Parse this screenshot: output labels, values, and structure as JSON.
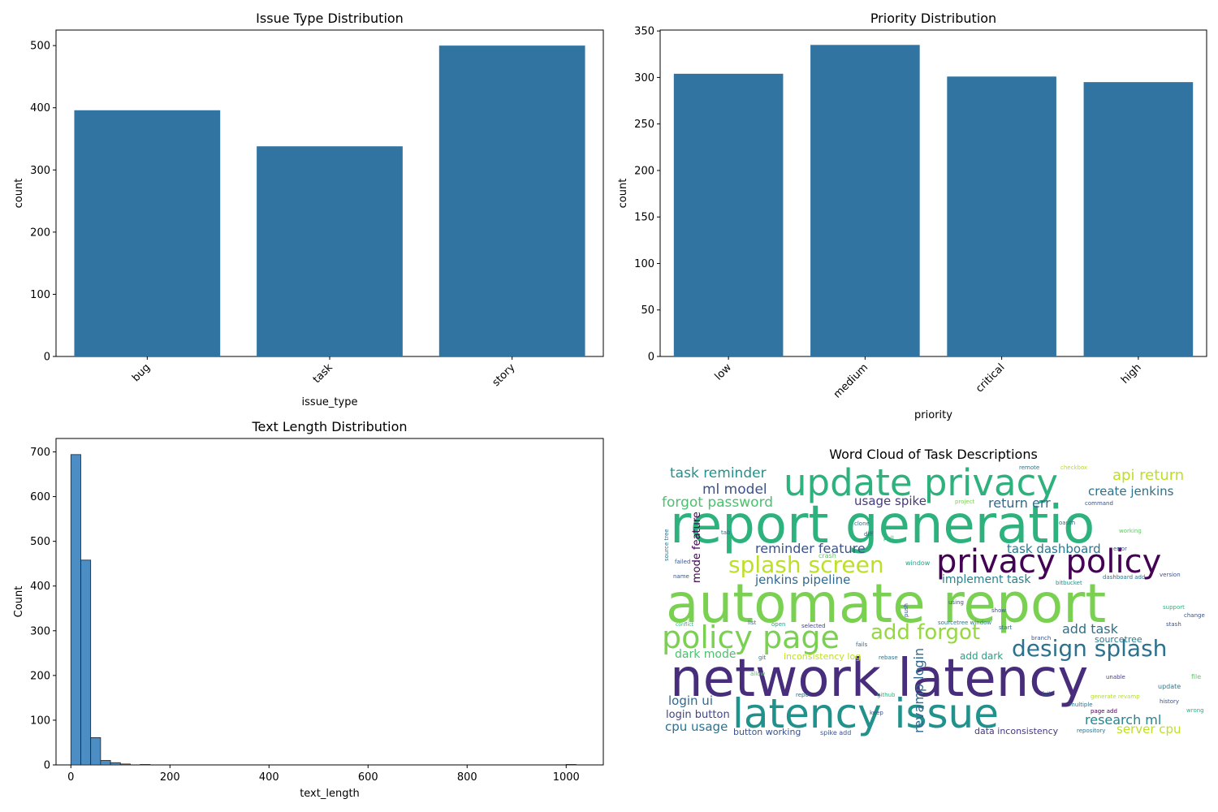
{
  "chart_data": [
    {
      "type": "bar",
      "title": "Issue Type Distribution",
      "xlabel": "issue_type",
      "ylabel": "count",
      "categories": [
        "bug",
        "task",
        "story"
      ],
      "values": [
        396,
        338,
        500
      ],
      "ylim": [
        0,
        525
      ],
      "yticks": [
        0,
        100,
        200,
        300,
        400,
        500
      ],
      "xtick_rotation": 45,
      "color": "#3274a1",
      "grid": false
    },
    {
      "type": "bar",
      "title": "Priority Distribution",
      "xlabel": "priority",
      "ylabel": "count",
      "categories": [
        "low",
        "medium",
        "critical",
        "high"
      ],
      "values": [
        304,
        335,
        301,
        295
      ],
      "ylim": [
        0,
        351
      ],
      "yticks": [
        0,
        50,
        100,
        150,
        200,
        250,
        300,
        350
      ],
      "xtick_rotation": 45,
      "color": "#3274a1",
      "grid": false
    },
    {
      "type": "bar",
      "subtype": "histogram",
      "title": "Text Length Distribution",
      "xlabel": "text_length",
      "ylabel": "Count",
      "bin_edges": [
        0,
        20,
        40,
        60,
        80,
        100,
        120,
        140,
        160,
        180,
        1000,
        1020
      ],
      "values": [
        694,
        458,
        61,
        10,
        5,
        2,
        0,
        1,
        0,
        0,
        1
      ],
      "xlim": [
        -30,
        1075
      ],
      "ylim": [
        0,
        730
      ],
      "xticks": [
        0,
        200,
        400,
        600,
        800,
        1000
      ],
      "yticks": [
        0,
        100,
        200,
        300,
        400,
        500,
        600,
        700
      ],
      "color": "#4c8ec4",
      "grid": false
    },
    {
      "type": "wordcloud",
      "title": "Word Cloud of Task Descriptions",
      "background": "#ffffff",
      "words": [
        {
          "text": "automate report",
          "weight": 100,
          "color": "#7ad151"
        },
        {
          "text": "report generatio",
          "weight": 90,
          "color": "#2db27d"
        },
        {
          "text": "network latency",
          "weight": 92,
          "color": "#472d7b"
        },
        {
          "text": "latency issue",
          "weight": 70,
          "color": "#21918c"
        },
        {
          "text": "update privacy",
          "weight": 62,
          "color": "#2db27d"
        },
        {
          "text": "privacy policy",
          "weight": 56,
          "color": "#440154"
        },
        {
          "text": "policy page",
          "weight": 52,
          "color": "#7ad151"
        },
        {
          "text": "design splash",
          "weight": 40,
          "color": "#2c728e"
        },
        {
          "text": "splash screen",
          "weight": 40,
          "color": "#bddf26"
        },
        {
          "text": "add forgot",
          "weight": 36,
          "color": "#95d840"
        },
        {
          "text": "task reminder",
          "weight": 24,
          "color": "#21918c"
        },
        {
          "text": "forgot password",
          "weight": 24,
          "color": "#4ac16d"
        },
        {
          "text": "api return",
          "weight": 24,
          "color": "#bddf26"
        },
        {
          "text": "ml model",
          "weight": 24,
          "color": "#3b528b"
        },
        {
          "text": "create jenkins",
          "weight": 20,
          "color": "#2c728e"
        },
        {
          "text": "reminder feature",
          "weight": 22,
          "color": "#3b528b"
        },
        {
          "text": "return err",
          "weight": 20,
          "color": "#31688e"
        },
        {
          "text": "task dashboard",
          "weight": 20,
          "color": "#2a788e"
        },
        {
          "text": "jenkins pipeline",
          "weight": 20,
          "color": "#31688e"
        },
        {
          "text": "implement task",
          "weight": 20,
          "color": "#25858e"
        },
        {
          "text": "usage spike",
          "weight": 18,
          "color": "#443983"
        },
        {
          "text": "add task",
          "weight": 20,
          "color": "#2c728e"
        },
        {
          "text": "dark mode",
          "weight": 18,
          "color": "#4ac16d"
        },
        {
          "text": "add dark",
          "weight": 14,
          "color": "#20a486"
        },
        {
          "text": "login ui",
          "weight": 18,
          "color": "#31688e"
        },
        {
          "text": "login button",
          "weight": 16,
          "color": "#414487"
        },
        {
          "text": "cpu usage",
          "weight": 18,
          "color": "#2c728e"
        },
        {
          "text": "button working",
          "weight": 14,
          "color": "#3b528b"
        },
        {
          "text": "research ml",
          "weight": 20,
          "color": "#25858e"
        },
        {
          "text": "server cpu",
          "weight": 18,
          "color": "#bddf26"
        },
        {
          "text": "data inconsistency",
          "weight": 12,
          "color": "#443983"
        },
        {
          "text": "inconsistency log",
          "weight": 12,
          "color": "#bddf26"
        },
        {
          "text": "revamp login",
          "weight": 18,
          "color": "#31688e"
        },
        {
          "text": "mode feature",
          "weight": 14,
          "color": "#440154"
        },
        {
          "text": "sourcetree",
          "weight": 11,
          "color": "#2a788e"
        },
        {
          "text": "sourcetree window",
          "weight": 8,
          "color": "#2a788e"
        },
        {
          "text": "spike add",
          "weight": 9,
          "color": "#3b528b"
        },
        {
          "text": "window",
          "weight": 8,
          "color": "#20a486"
        },
        {
          "text": "bitbucket",
          "weight": 7,
          "color": "#21918c"
        },
        {
          "text": "dashboard add",
          "weight": 7,
          "color": "#2c728e"
        },
        {
          "text": "version",
          "weight": 7,
          "color": "#3b528b"
        },
        {
          "text": "support",
          "weight": 7,
          "color": "#2db27d"
        },
        {
          "text": "change",
          "weight": 7,
          "color": "#3b528b"
        },
        {
          "text": "update",
          "weight": 8,
          "color": "#2a788e"
        },
        {
          "text": "file",
          "weight": 8,
          "color": "#5ec962"
        },
        {
          "text": "unable",
          "weight": 7,
          "color": "#433e85"
        },
        {
          "text": "branch",
          "weight": 7,
          "color": "#3b528b"
        },
        {
          "text": "repository",
          "weight": 7,
          "color": "#2c728e"
        },
        {
          "text": "page add",
          "weight": 7,
          "color": "#440154"
        },
        {
          "text": "generate revamp",
          "weight": 7,
          "color": "#b5de2b"
        },
        {
          "text": "multiple",
          "weight": 7,
          "color": "#2c728e"
        },
        {
          "text": "fail",
          "weight": 7,
          "color": "#3b528b"
        },
        {
          "text": "github",
          "weight": 7,
          "color": "#2db27d"
        },
        {
          "text": "keep",
          "weight": 7,
          "color": "#3b528b"
        },
        {
          "text": "repo",
          "weight": 7,
          "color": "#31688e"
        },
        {
          "text": "crash",
          "weight": 8,
          "color": "#5ec962"
        },
        {
          "text": "git",
          "weight": 7,
          "color": "#2a788e"
        },
        {
          "text": "allow",
          "weight": 7,
          "color": "#4ac16d"
        },
        {
          "text": "rebase",
          "weight": 7,
          "color": "#2c728e"
        },
        {
          "text": "fails",
          "weight": 7,
          "color": "#31688e"
        },
        {
          "text": "selected",
          "weight": 7,
          "color": "#414487"
        },
        {
          "text": "open",
          "weight": 7,
          "color": "#20a486"
        },
        {
          "text": "list",
          "weight": 7,
          "color": "#2c728e"
        },
        {
          "text": "conflict",
          "weight": 6,
          "color": "#2db27d"
        },
        {
          "text": "using",
          "weight": 7,
          "color": "#3b528b"
        },
        {
          "text": "push",
          "weight": 7,
          "color": "#3b528b"
        },
        {
          "text": "diff",
          "weight": 7,
          "color": "#3b528b"
        },
        {
          "text": "pull",
          "weight": 7,
          "color": "#2db27d"
        },
        {
          "text": "tab",
          "weight": 7,
          "color": "#31688e"
        },
        {
          "text": "clone",
          "weight": 7,
          "color": "#2c728e"
        },
        {
          "text": "oauth",
          "weight": 7,
          "color": "#2c728e"
        },
        {
          "text": "working",
          "weight": 7,
          "color": "#5ec962"
        },
        {
          "text": "error",
          "weight": 7,
          "color": "#3b528b"
        },
        {
          "text": "source tree",
          "weight": 7,
          "color": "#2c728e"
        },
        {
          "text": "failed",
          "weight": 7,
          "color": "#3b528b"
        },
        {
          "text": "name",
          "weight": 7,
          "color": "#3b528b"
        },
        {
          "text": "start",
          "weight": 7,
          "color": "#2c728e"
        },
        {
          "text": "show",
          "weight": 7,
          "color": "#3b528b"
        },
        {
          "text": "history",
          "weight": 7,
          "color": "#3b528b"
        },
        {
          "text": "wrong",
          "weight": 7,
          "color": "#2db27d"
        },
        {
          "text": "stash",
          "weight": 7,
          "color": "#3b528b"
        },
        {
          "text": "project",
          "weight": 7,
          "color": "#7ad151"
        },
        {
          "text": "remote",
          "weight": 7,
          "color": "#2c728e"
        },
        {
          "text": "checkbox",
          "weight": 7,
          "color": "#b5de2b"
        },
        {
          "text": "command",
          "weight": 7,
          "color": "#3b528b"
        }
      ]
    }
  ]
}
